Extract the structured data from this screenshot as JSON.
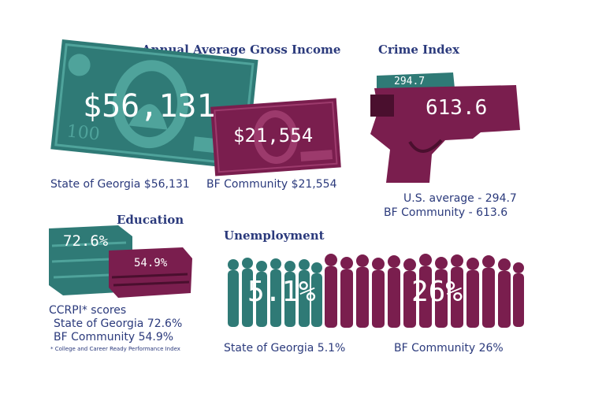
{
  "colors": {
    "teal": "#2f7a76",
    "teal_light": "#4fa39b",
    "maroon": "#7a1e4e",
    "maroon_dark": "#4a0f2e",
    "navy": "#2b3a7c"
  },
  "income": {
    "heading": "Annual Average Gross Income",
    "state_value": "$56,131",
    "bf_value": "$21,554",
    "state_caption": "State of Georgia $56,131",
    "bf_caption": "BF Community $21,554"
  },
  "crime": {
    "heading": "Crime Index",
    "us_value": "294.7",
    "bf_value": "613.6",
    "us_caption": "U.S. average - 294.7",
    "bf_caption": "BF Community - 613.6"
  },
  "education": {
    "heading": "Education",
    "state_value": "72.6%",
    "bf_value": "54.9%",
    "caption_title": "CCRPI* scores",
    "state_caption": "State of Georgia 72.6%",
    "bf_caption": "BF Community 54.9%",
    "footnote": "* College and Career Ready Performance Index"
  },
  "unemployment": {
    "heading": "Unemployment",
    "state_value": "5.1%",
    "bf_value": "26%",
    "state_caption": "State of Georgia 5.1%",
    "bf_caption": "BF Community 26%"
  }
}
